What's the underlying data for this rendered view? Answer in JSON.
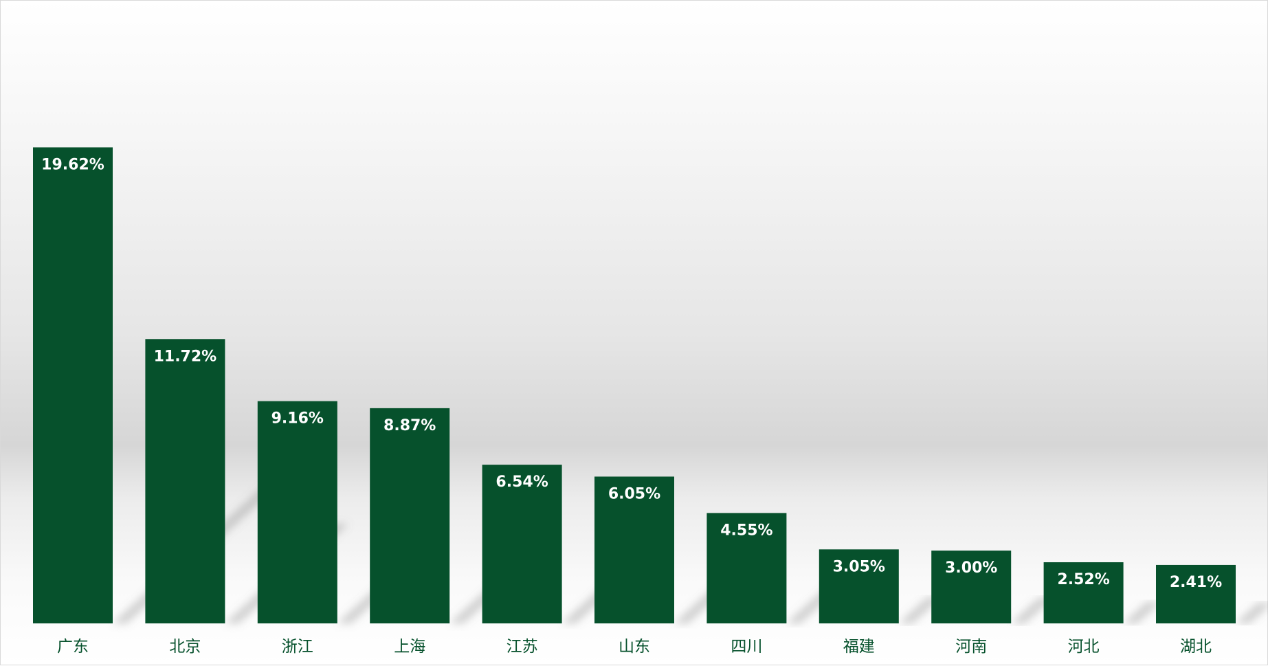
{
  "chart_data": {
    "type": "bar",
    "title": "",
    "xlabel": "",
    "ylabel": "",
    "categories": [
      "广东",
      "北京",
      "浙江",
      "上海",
      "江苏",
      "山东",
      "四川",
      "福建",
      "河南",
      "河北",
      "湖北"
    ],
    "values": [
      19.62,
      11.72,
      9.16,
      8.87,
      6.54,
      6.05,
      4.55,
      3.05,
      3.0,
      2.52,
      2.41
    ],
    "data_labels": [
      "19.62%",
      "11.72%",
      "9.16%",
      "8.87%",
      "6.54%",
      "6.05%",
      "4.55%",
      "3.05%",
      "3.00%",
      "2.52%",
      "2.41%"
    ],
    "ylim": [
      0,
      25
    ],
    "grid": false,
    "legend": "none",
    "bar_color": "#06512c",
    "label_color": "#ffffff",
    "category_color": "#06512c"
  }
}
